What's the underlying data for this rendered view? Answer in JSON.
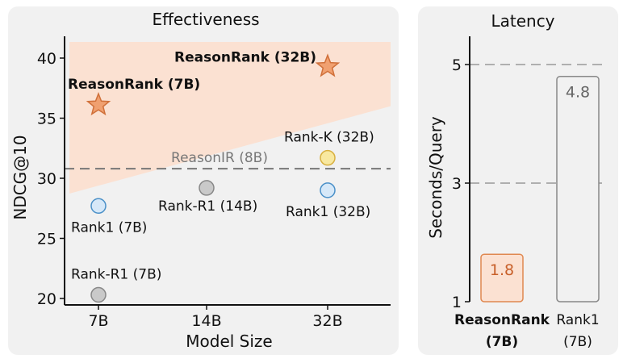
{
  "chart_data": [
    {
      "type": "scatter",
      "title": "Effectiveness",
      "xlabel": "Model Size",
      "ylabel": "NDCG@10",
      "x_categories": [
        "7B",
        "14B",
        "32B"
      ],
      "yticks": [
        20,
        25,
        30,
        35,
        40
      ],
      "ylim": [
        19.5,
        41.5
      ],
      "reference_line": {
        "label": "ReasonIR (8B)",
        "value": 30.8
      },
      "points": [
        {
          "label": "ReasonRank (7B)",
          "x": "7B",
          "y": 36.1,
          "marker": "star",
          "color": "#f0a070",
          "bold": true
        },
        {
          "label": "ReasonRank (32B)",
          "x": "32B",
          "y": 39.3,
          "marker": "star",
          "color": "#f0a070",
          "bold": true
        },
        {
          "label": "Rank-K (32B)",
          "x": "32B",
          "y": 31.7,
          "marker": "circle",
          "color": "#f8e8a0"
        },
        {
          "label": "Rank1 (7B)",
          "x": "7B",
          "y": 27.7,
          "marker": "circle",
          "color": "#d6e8f8"
        },
        {
          "label": "Rank-R1 (14B)",
          "x": "14B",
          "y": 29.2,
          "marker": "circle",
          "color": "#c9c9c9"
        },
        {
          "label": "Rank1 (32B)",
          "x": "32B",
          "y": 29.0,
          "marker": "circle",
          "color": "#d6e8f8"
        },
        {
          "label": "Rank-R1 (7B)",
          "x": "7B",
          "y": 20.3,
          "marker": "circle",
          "color": "#c9c9c9"
        }
      ],
      "shaded_region_color": "#fbe1d2",
      "grid": false
    },
    {
      "type": "bar",
      "title": "Latency",
      "ylabel": "Seconds/Query",
      "yticks": [
        1,
        3,
        5
      ],
      "ylim": [
        1,
        5.3
      ],
      "categories": [
        "ReasonRank (7B)",
        "Rank1 (7B)"
      ],
      "category_lines": [
        [
          "ReasonRank",
          "(7B)"
        ],
        [
          "Rank1",
          "(7B)"
        ]
      ],
      "values": [
        1.8,
        4.8
      ],
      "value_labels": [
        "1.8",
        "4.8"
      ],
      "colors": [
        "#fbe1d2",
        "#f1f1f1"
      ],
      "edge_colors": [
        "#e08850",
        "#888888"
      ],
      "label_colors": [
        "#c8602a",
        "#666666"
      ],
      "grid": "horizontal dashed"
    }
  ]
}
